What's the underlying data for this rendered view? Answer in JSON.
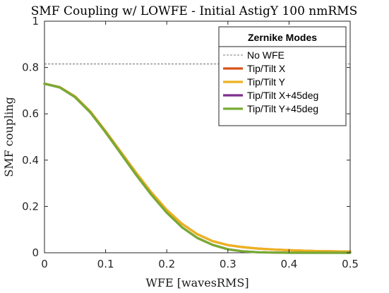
{
  "chart_data": {
    "type": "line",
    "title": "SMF Coupling w/ LOWFE - Initial AstigY 100 nmRMS",
    "xlabel": "WFE [wavesRMS]",
    "ylabel": "SMF coupling",
    "xlim": [
      0,
      0.5
    ],
    "ylim": [
      0,
      1
    ],
    "xticks": [
      "0",
      "0.1",
      "0.2",
      "0.3",
      "0.4",
      "0.5"
    ],
    "yticks": [
      "0",
      "0.2",
      "0.4",
      "0.6",
      "0.8",
      "1"
    ],
    "grid": false,
    "legend": {
      "title": "Zernike Modes",
      "placement": "top-right"
    },
    "reference_line": {
      "name": "No WFE",
      "y": 0.815,
      "color": "#555555"
    },
    "series": [
      {
        "name": "Tip/Tilt X",
        "color": "#d95319",
        "x": [
          0,
          0.025,
          0.05,
          0.075,
          0.1,
          0.125,
          0.15,
          0.175,
          0.2,
          0.225,
          0.25,
          0.275,
          0.3,
          0.325,
          0.35,
          0.375,
          0.4,
          0.425,
          0.45,
          0.475,
          0.5
        ],
        "values": [
          0.73,
          0.715,
          0.675,
          0.61,
          0.525,
          0.435,
          0.345,
          0.26,
          0.185,
          0.125,
          0.08,
          0.05,
          0.033,
          0.024,
          0.018,
          0.014,
          0.011,
          0.009,
          0.007,
          0.006,
          0.005
        ]
      },
      {
        "name": "Tip/Tilt Y",
        "color": "#edb120",
        "x": [
          0,
          0.025,
          0.05,
          0.075,
          0.1,
          0.125,
          0.15,
          0.175,
          0.2,
          0.225,
          0.25,
          0.275,
          0.3,
          0.325,
          0.35,
          0.375,
          0.4,
          0.425,
          0.45,
          0.475,
          0.5
        ],
        "values": [
          0.73,
          0.715,
          0.675,
          0.61,
          0.525,
          0.435,
          0.345,
          0.26,
          0.185,
          0.125,
          0.08,
          0.05,
          0.033,
          0.024,
          0.018,
          0.014,
          0.011,
          0.009,
          0.007,
          0.006,
          0.005
        ]
      },
      {
        "name": "Tip/Tilt X+45deg",
        "color": "#7e2f8e",
        "x": [
          0,
          0.025,
          0.05,
          0.075,
          0.1,
          0.125,
          0.15,
          0.175,
          0.2,
          0.225,
          0.25,
          0.275,
          0.3,
          0.325,
          0.35,
          0.375,
          0.4,
          0.425,
          0.45,
          0.475,
          0.5
        ],
        "values": [
          0.73,
          0.714,
          0.672,
          0.606,
          0.52,
          0.428,
          0.336,
          0.25,
          0.173,
          0.11,
          0.064,
          0.034,
          0.015,
          0.006,
          0.002,
          0.001,
          0.0,
          0.0,
          0.0,
          0.0,
          0.0
        ]
      },
      {
        "name": "Tip/Tilt Y+45deg",
        "color": "#77ac30",
        "x": [
          0,
          0.025,
          0.05,
          0.075,
          0.1,
          0.125,
          0.15,
          0.175,
          0.2,
          0.225,
          0.25,
          0.275,
          0.3,
          0.325,
          0.35,
          0.375,
          0.4,
          0.425,
          0.45,
          0.475,
          0.5
        ],
        "values": [
          0.73,
          0.714,
          0.672,
          0.606,
          0.52,
          0.428,
          0.336,
          0.25,
          0.173,
          0.11,
          0.064,
          0.034,
          0.015,
          0.006,
          0.002,
          0.001,
          0.0,
          0.0,
          0.0,
          0.0,
          0.0
        ]
      }
    ]
  }
}
